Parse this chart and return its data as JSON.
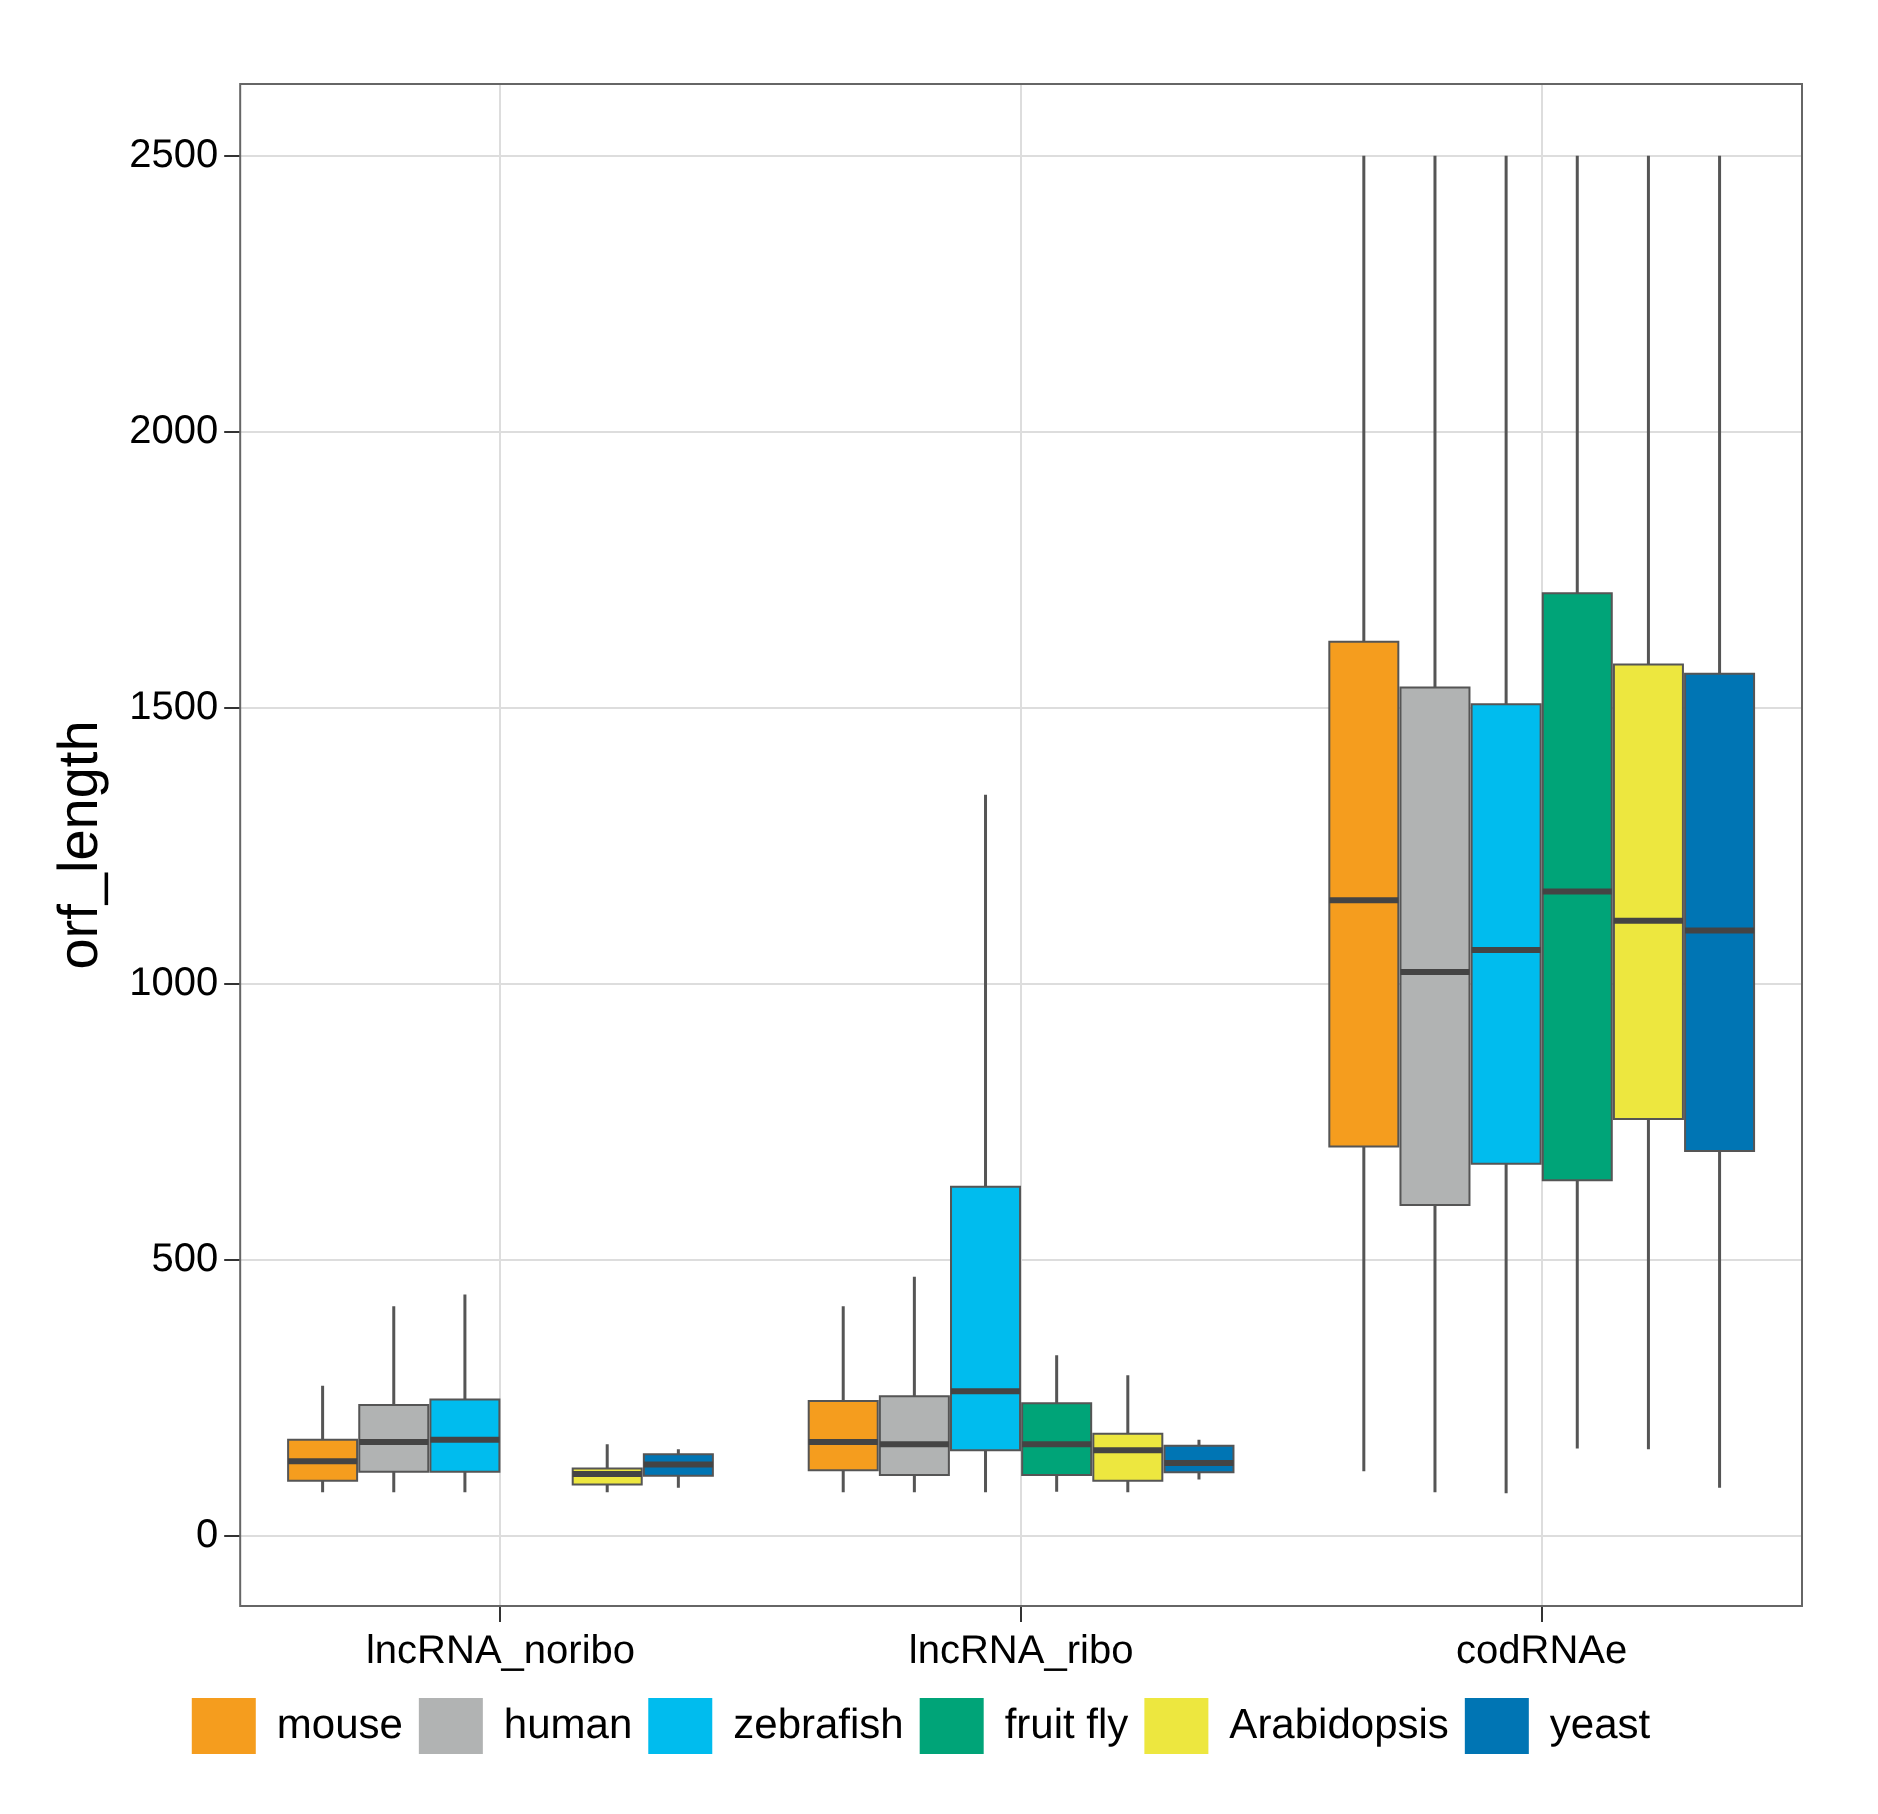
{
  "chart_data": {
    "type": "box",
    "ylabel": "orf_length",
    "categories": [
      "lncRNA_noribo",
      "lncRNA_ribo",
      "codRNAe"
    ],
    "ylim": [
      -126,
      2630
    ],
    "yticks": [
      0,
      500,
      1000,
      1500,
      2000,
      2500
    ],
    "grid": true,
    "legend": "bottom",
    "series": [
      {
        "name": "mouse",
        "color": "#f59d1e",
        "boxes": [
          {
            "low": 80,
            "q1": 101,
            "median": 136,
            "q3": 175,
            "high": 273
          },
          {
            "low": 80,
            "q1": 120,
            "median": 171,
            "q3": 245,
            "high": 417
          },
          {
            "low": 118,
            "q1": 706,
            "median": 1152,
            "q3": 1620,
            "high": 2500
          }
        ]
      },
      {
        "name": "human",
        "color": "#b1b3b3",
        "boxes": [
          {
            "low": 80,
            "q1": 117,
            "median": 171,
            "q3": 238,
            "high": 417
          },
          {
            "low": 80,
            "q1": 111,
            "median": 167,
            "q3": 254,
            "high": 470
          },
          {
            "low": 80,
            "q1": 600,
            "median": 1022,
            "q3": 1537,
            "high": 2500
          }
        ]
      },
      {
        "name": "zebrafish",
        "color": "#00bcee",
        "boxes": [
          {
            "low": 80,
            "q1": 117,
            "median": 175,
            "q3": 248,
            "high": 438
          },
          {
            "low": 80,
            "q1": 156,
            "median": 263,
            "q3": 633,
            "high": 1343
          },
          {
            "low": 78,
            "q1": 675,
            "median": 1062,
            "q3": 1507,
            "high": 2500
          }
        ]
      },
      {
        "name": "fruit fly",
        "color": "#00a478",
        "boxes": [
          null,
          {
            "low": 81,
            "q1": 111,
            "median": 167,
            "q3": 241,
            "high": 328
          },
          {
            "low": 159,
            "q1": 645,
            "median": 1168,
            "q3": 1708,
            "high": 2500
          }
        ]
      },
      {
        "name": "Arabidopsis",
        "color": "#ede73f",
        "boxes": [
          {
            "low": 80,
            "q1": 94,
            "median": 113,
            "q3": 123,
            "high": 167
          },
          {
            "low": 80,
            "q1": 101,
            "median": 156,
            "q3": 186,
            "high": 292
          },
          {
            "low": 158,
            "q1": 756,
            "median": 1115,
            "q3": 1579,
            "high": 2500
          }
        ]
      },
      {
        "name": "yeast",
        "color": "#0075b4",
        "boxes": [
          {
            "low": 88,
            "q1": 110,
            "median": 130,
            "q3": 149,
            "high": 158
          },
          {
            "low": 103,
            "q1": 116,
            "median": 133,
            "q3": 164,
            "high": 175
          },
          {
            "low": 88,
            "q1": 698,
            "median": 1097,
            "q3": 1562,
            "high": 2500
          }
        ]
      }
    ]
  }
}
